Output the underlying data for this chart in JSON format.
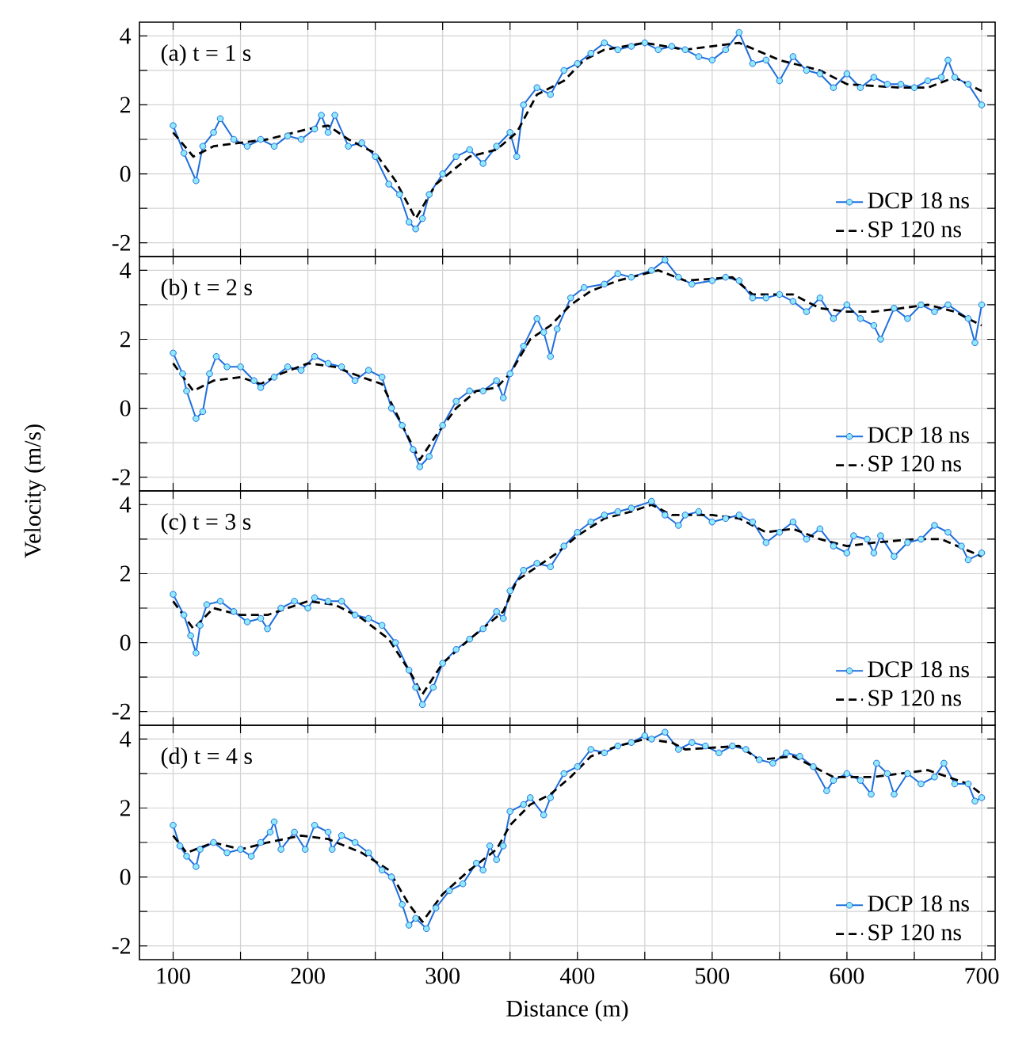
{
  "chart_data": [
    {
      "type": "line",
      "title": "(a) t = 1 s",
      "xlim": [
        75,
        710
      ],
      "ylim": [
        -2.4,
        4.4
      ],
      "grid": true,
      "legend": "bottom right",
      "tick_labels": "y",
      "xticks": [
        100,
        {
          "value": 150,
          "label": null
        },
        200,
        {
          "value": 250,
          "label": null
        },
        300,
        {
          "value": 350,
          "label": null
        },
        400,
        {
          "value": 450,
          "label": null
        },
        500,
        {
          "value": 550,
          "label": null
        },
        600,
        {
          "value": 650,
          "label": null
        },
        700
      ],
      "yticks": [
        -2,
        {
          "value": -1,
          "label": null
        },
        0,
        {
          "value": 1,
          "label": null
        },
        2,
        {
          "value": 3,
          "label": null
        },
        4
      ],
      "series": [
        {
          "name": "DCP  18 ns",
          "color": "#1e6fdc",
          "marker": "circle",
          "line_style": "solid",
          "x": [
            100,
            108,
            117,
            122,
            130,
            135,
            145,
            155,
            165,
            175,
            185,
            195,
            205,
            210,
            215,
            220,
            230,
            240,
            250,
            260,
            268,
            275,
            280,
            285,
            290,
            300,
            310,
            320,
            330,
            340,
            350,
            355,
            360,
            370,
            380,
            390,
            400,
            410,
            420,
            430,
            440,
            450,
            460,
            470,
            480,
            490,
            500,
            510,
            520,
            530,
            540,
            550,
            560,
            570,
            580,
            590,
            600,
            610,
            620,
            630,
            640,
            650,
            660,
            670,
            675,
            680,
            690,
            700
          ],
          "values": [
            1.4,
            0.6,
            -0.2,
            0.8,
            1.2,
            1.6,
            1.0,
            0.8,
            1.0,
            0.8,
            1.1,
            1.0,
            1.3,
            1.7,
            1.2,
            1.7,
            0.8,
            0.9,
            0.5,
            -0.3,
            -0.6,
            -1.4,
            -1.6,
            -1.3,
            -0.6,
            0.0,
            0.5,
            0.7,
            0.3,
            0.8,
            1.2,
            0.5,
            2.0,
            2.5,
            2.3,
            3.0,
            3.2,
            3.5,
            3.8,
            3.6,
            3.7,
            3.8,
            3.6,
            3.7,
            3.6,
            3.4,
            3.3,
            3.6,
            4.1,
            3.2,
            3.3,
            2.7,
            3.4,
            3.0,
            2.9,
            2.5,
            2.9,
            2.5,
            2.8,
            2.6,
            2.6,
            2.5,
            2.7,
            2.8,
            3.3,
            2.8,
            2.6,
            2.0
          ]
        },
        {
          "name": "SP   120 ns",
          "color": "#000000",
          "marker": "none",
          "line_style": "dashed",
          "x": [
            100,
            115,
            130,
            150,
            170,
            200,
            215,
            230,
            250,
            265,
            280,
            295,
            320,
            340,
            355,
            370,
            390,
            405,
            420,
            450,
            480,
            520,
            550,
            580,
            600,
            640,
            660,
            680,
            700
          ],
          "values": [
            1.2,
            0.5,
            0.8,
            0.9,
            1.0,
            1.3,
            1.4,
            1.0,
            0.6,
            -0.2,
            -1.3,
            -0.3,
            0.5,
            0.7,
            1.2,
            2.3,
            2.7,
            3.3,
            3.6,
            3.8,
            3.6,
            3.8,
            3.3,
            3.0,
            2.6,
            2.5,
            2.5,
            2.8,
            2.4
          ]
        }
      ]
    },
    {
      "type": "line",
      "title": "(b) t = 2 s",
      "ylabel": "Velocity (m/s)",
      "xlim": [
        75,
        710
      ],
      "ylim": [
        -2.4,
        4.4
      ],
      "grid": true,
      "legend": "bottom right",
      "tick_labels": "y",
      "xticks": [
        100,
        {
          "value": 150,
          "label": null
        },
        200,
        {
          "value": 250,
          "label": null
        },
        300,
        {
          "value": 350,
          "label": null
        },
        400,
        {
          "value": 450,
          "label": null
        },
        500,
        {
          "value": 550,
          "label": null
        },
        600,
        {
          "value": 650,
          "label": null
        },
        700
      ],
      "yticks": [
        -2,
        {
          "value": -1,
          "label": null
        },
        0,
        {
          "value": 1,
          "label": null
        },
        2,
        {
          "value": 3,
          "label": null
        },
        4
      ],
      "series": [
        {
          "name": "DCP  18 ns",
          "color": "#1e6fdc",
          "marker": "circle",
          "line_style": "solid",
          "x": [
            100,
            107,
            110,
            117,
            122,
            127,
            132,
            140,
            150,
            160,
            165,
            175,
            185,
            195,
            205,
            215,
            225,
            235,
            245,
            255,
            262,
            270,
            278,
            283,
            290,
            300,
            310,
            320,
            330,
            340,
            345,
            350,
            360,
            370,
            375,
            380,
            385,
            395,
            405,
            420,
            430,
            440,
            455,
            465,
            475,
            485,
            500,
            510,
            520,
            530,
            540,
            550,
            560,
            570,
            580,
            590,
            600,
            610,
            620,
            625,
            635,
            645,
            655,
            665,
            675,
            690,
            695,
            700
          ],
          "values": [
            1.6,
            1.0,
            0.5,
            -0.3,
            -0.1,
            1.0,
            1.5,
            1.2,
            1.2,
            0.8,
            0.6,
            0.9,
            1.2,
            1.1,
            1.5,
            1.3,
            1.2,
            0.8,
            1.1,
            0.9,
            0.0,
            -0.5,
            -1.2,
            -1.7,
            -1.4,
            -0.5,
            0.2,
            0.5,
            0.5,
            0.8,
            0.3,
            1.0,
            1.8,
            2.6,
            2.2,
            1.5,
            2.3,
            3.2,
            3.5,
            3.6,
            3.9,
            3.8,
            4.0,
            4.3,
            3.8,
            3.6,
            3.7,
            3.8,
            3.7,
            3.2,
            3.2,
            3.3,
            3.1,
            2.8,
            3.2,
            2.6,
            3.0,
            2.6,
            2.4,
            2.0,
            2.9,
            2.6,
            3.0,
            2.8,
            3.0,
            2.6,
            1.9,
            3.0
          ]
        },
        {
          "name": "SP   120 ns",
          "color": "#000000",
          "marker": "none",
          "line_style": "dashed",
          "x": [
            100,
            115,
            130,
            150,
            165,
            180,
            200,
            220,
            240,
            255,
            270,
            283,
            295,
            310,
            325,
            340,
            350,
            365,
            380,
            395,
            410,
            430,
            450,
            460,
            480,
            515,
            530,
            560,
            580,
            600,
            620,
            640,
            660,
            680,
            700
          ],
          "values": [
            1.3,
            0.5,
            0.8,
            0.9,
            0.7,
            1.0,
            1.3,
            1.2,
            0.9,
            0.7,
            -0.5,
            -1.5,
            -0.8,
            0.0,
            0.5,
            0.6,
            1.0,
            2.0,
            2.4,
            3.0,
            3.4,
            3.7,
            3.9,
            4.0,
            3.7,
            3.8,
            3.3,
            3.3,
            2.9,
            2.8,
            2.8,
            2.9,
            3.0,
            2.8,
            2.4
          ]
        }
      ]
    },
    {
      "type": "line",
      "title": "(c) t = 3 s",
      "xlim": [
        75,
        710
      ],
      "ylim": [
        -2.4,
        4.4
      ],
      "grid": true,
      "legend": "bottom right",
      "tick_labels": "y",
      "xticks": [
        100,
        {
          "value": 150,
          "label": null
        },
        200,
        {
          "value": 250,
          "label": null
        },
        300,
        {
          "value": 350,
          "label": null
        },
        400,
        {
          "value": 450,
          "label": null
        },
        500,
        {
          "value": 550,
          "label": null
        },
        600,
        {
          "value": 650,
          "label": null
        },
        700
      ],
      "yticks": [
        -2,
        {
          "value": -1,
          "label": null
        },
        0,
        {
          "value": 1,
          "label": null
        },
        2,
        {
          "value": 3,
          "label": null
        },
        4
      ],
      "series": [
        {
          "name": "DCP  18 ns",
          "color": "#1e6fdc",
          "marker": "circle",
          "line_style": "solid",
          "x": [
            100,
            108,
            113,
            117,
            120,
            125,
            135,
            145,
            155,
            165,
            170,
            180,
            190,
            200,
            205,
            215,
            225,
            235,
            245,
            255,
            265,
            275,
            280,
            285,
            293,
            300,
            310,
            320,
            330,
            340,
            345,
            350,
            360,
            370,
            380,
            390,
            400,
            410,
            420,
            430,
            440,
            455,
            465,
            475,
            480,
            490,
            500,
            510,
            520,
            530,
            540,
            550,
            560,
            570,
            580,
            590,
            600,
            605,
            615,
            620,
            625,
            635,
            645,
            655,
            665,
            675,
            685,
            690,
            700
          ],
          "values": [
            1.4,
            0.8,
            0.2,
            -0.3,
            0.5,
            1.1,
            1.2,
            0.9,
            0.6,
            0.7,
            0.4,
            1.0,
            1.2,
            1.0,
            1.3,
            1.2,
            1.2,
            0.8,
            0.7,
            0.5,
            0.0,
            -0.8,
            -1.3,
            -1.8,
            -1.3,
            -0.6,
            -0.2,
            0.1,
            0.4,
            0.9,
            0.7,
            1.5,
            2.1,
            2.3,
            2.2,
            2.8,
            3.2,
            3.5,
            3.7,
            3.8,
            3.9,
            4.1,
            3.7,
            3.4,
            3.7,
            3.8,
            3.5,
            3.6,
            3.7,
            3.5,
            2.9,
            3.2,
            3.5,
            3.0,
            3.3,
            2.8,
            2.6,
            3.1,
            3.0,
            2.6,
            3.1,
            2.5,
            2.9,
            3.0,
            3.4,
            3.2,
            2.8,
            2.4,
            2.6
          ]
        },
        {
          "name": "SP   120 ns",
          "color": "#000000",
          "marker": "none",
          "line_style": "dashed",
          "x": [
            100,
            115,
            130,
            150,
            170,
            200,
            220,
            240,
            260,
            275,
            285,
            300,
            320,
            345,
            355,
            370,
            385,
            400,
            420,
            440,
            455,
            470,
            500,
            520,
            540,
            560,
            580,
            600,
            620,
            650,
            670,
            700
          ],
          "values": [
            1.2,
            0.4,
            1.0,
            0.8,
            0.8,
            1.2,
            1.1,
            0.7,
            0.1,
            -0.8,
            -1.5,
            -0.6,
            0.1,
            0.9,
            1.8,
            2.2,
            2.6,
            3.1,
            3.6,
            3.8,
            4.0,
            3.7,
            3.7,
            3.6,
            3.2,
            3.3,
            3.0,
            2.8,
            2.9,
            3.0,
            3.0,
            2.5
          ]
        }
      ]
    },
    {
      "type": "line",
      "title": "(d) t = 4 s",
      "xlabel": "Distance (m)",
      "xlim": [
        75,
        710
      ],
      "ylim": [
        -2.4,
        4.4
      ],
      "grid": true,
      "legend": "bottom right",
      "xticks": [
        100,
        {
          "value": 150,
          "label": null
        },
        200,
        {
          "value": 250,
          "label": null
        },
        300,
        {
          "value": 350,
          "label": null
        },
        400,
        {
          "value": 450,
          "label": null
        },
        500,
        {
          "value": 550,
          "label": null
        },
        600,
        {
          "value": 650,
          "label": null
        },
        700
      ],
      "yticks": [
        -2,
        {
          "value": -1,
          "label": null
        },
        0,
        {
          "value": 1,
          "label": null
        },
        2,
        {
          "value": 3,
          "label": null
        },
        4
      ],
      "series": [
        {
          "name": "DCP  18 ns",
          "color": "#1e6fdc",
          "marker": "circle",
          "line_style": "solid",
          "x": [
            100,
            105,
            110,
            117,
            120,
            130,
            140,
            150,
            158,
            165,
            172,
            175,
            180,
            190,
            198,
            205,
            215,
            218,
            225,
            235,
            245,
            255,
            262,
            270,
            275,
            280,
            288,
            295,
            305,
            315,
            325,
            330,
            335,
            340,
            345,
            350,
            360,
            365,
            375,
            380,
            390,
            400,
            410,
            420,
            430,
            440,
            450,
            455,
            465,
            475,
            485,
            495,
            505,
            515,
            525,
            535,
            545,
            555,
            565,
            575,
            585,
            590,
            600,
            610,
            618,
            622,
            630,
            635,
            645,
            655,
            665,
            672,
            680,
            690,
            695,
            700
          ],
          "values": [
            1.5,
            0.9,
            0.6,
            0.3,
            0.8,
            1.0,
            0.7,
            0.8,
            0.6,
            1.0,
            1.3,
            1.6,
            0.8,
            1.3,
            0.8,
            1.5,
            1.3,
            0.8,
            1.2,
            1.0,
            0.7,
            0.2,
            0.0,
            -0.8,
            -1.4,
            -1.2,
            -1.5,
            -0.9,
            -0.4,
            -0.2,
            0.4,
            0.2,
            0.9,
            0.5,
            0.9,
            1.9,
            2.1,
            2.3,
            1.8,
            2.3,
            3.0,
            3.2,
            3.7,
            3.6,
            3.8,
            3.9,
            4.1,
            4.0,
            4.2,
            3.7,
            3.9,
            3.8,
            3.6,
            3.8,
            3.7,
            3.4,
            3.3,
            3.6,
            3.5,
            3.2,
            2.5,
            2.8,
            3.0,
            2.8,
            2.4,
            3.3,
            3.0,
            2.4,
            3.0,
            2.7,
            2.9,
            3.3,
            2.7,
            2.7,
            2.2,
            2.3
          ]
        },
        {
          "name": "SP   120 ns",
          "color": "#000000",
          "marker": "none",
          "line_style": "dashed",
          "x": [
            100,
            110,
            130,
            150,
            170,
            195,
            215,
            240,
            260,
            275,
            285,
            300,
            320,
            340,
            350,
            365,
            380,
            395,
            410,
            430,
            450,
            470,
            480,
            520,
            535,
            560,
            590,
            620,
            640,
            660,
            690,
            700
          ],
          "values": [
            1.2,
            0.7,
            1.0,
            0.8,
            1.0,
            1.2,
            1.1,
            0.7,
            0.2,
            -0.8,
            -1.3,
            -0.5,
            0.2,
            0.8,
            1.5,
            2.1,
            2.4,
            2.9,
            3.5,
            3.8,
            4.0,
            3.9,
            3.7,
            3.8,
            3.4,
            3.5,
            2.9,
            2.9,
            3.0,
            3.1,
            2.7,
            2.4
          ]
        }
      ]
    }
  ]
}
